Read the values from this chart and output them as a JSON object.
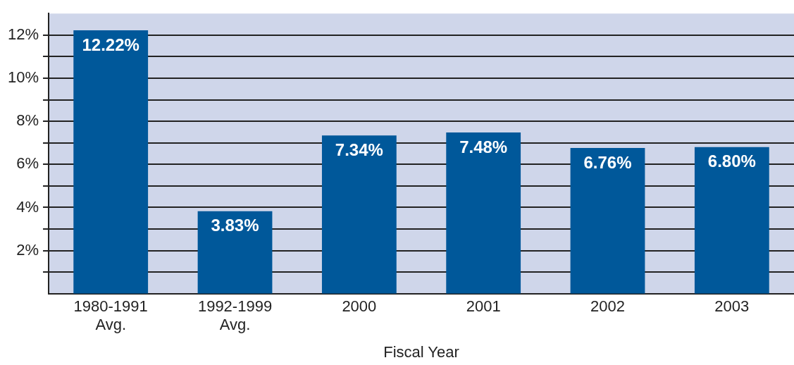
{
  "chart_data": {
    "type": "bar",
    "xlabel": "Fiscal Year",
    "categories": [
      "1980-1991\nAvg.",
      "1992-1999\nAvg.",
      "2000",
      "2001",
      "2002",
      "2003"
    ],
    "values": [
      12.22,
      3.83,
      7.34,
      7.48,
      6.76,
      6.8
    ],
    "value_labels": [
      "12.22%",
      "3.83%",
      "7.34%",
      "7.48%",
      "6.76%",
      "6.80%"
    ],
    "color": "#00589a",
    "ylim": [
      0,
      13
    ],
    "yticks": [
      {
        "value": 1,
        "label": null
      },
      {
        "value": 2,
        "label": "2%"
      },
      {
        "value": 3,
        "label": null
      },
      {
        "value": 4,
        "label": "4%"
      },
      {
        "value": 5,
        "label": null
      },
      {
        "value": 6,
        "label": "6%"
      },
      {
        "value": 7,
        "label": null
      },
      {
        "value": 8,
        "label": "8%"
      },
      {
        "value": 9,
        "label": null
      },
      {
        "value": 10,
        "label": "10%"
      },
      {
        "value": 11,
        "label": null
      },
      {
        "value": 12,
        "label": "12%"
      }
    ],
    "grid": "y",
    "legend": false
  }
}
